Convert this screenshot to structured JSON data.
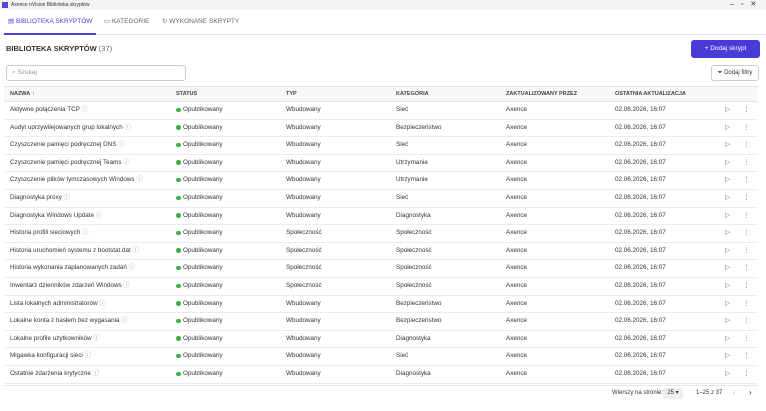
{
  "window": {
    "title": "Axence nVision Biblioteka skryptów"
  },
  "tabs": [
    "BIBLIOTEKA SKRYPTÓW",
    "KATEGORIE",
    "WYKONANE SKRYPTY"
  ],
  "header": {
    "title": "BIBLIOTEKA SKRYPTÓW",
    "count": "(37)",
    "add_button": "Dodaj skrypt"
  },
  "search": {
    "placeholder": "Szukaj"
  },
  "filters": {
    "button": "Dodaj filtry"
  },
  "table": {
    "columns": [
      "NAZWA",
      "STATUS",
      "TYP",
      "KATEGORIA",
      "ZAKTUALIZOWANY PRZEZ",
      "OSTATNIA AKTUALIZACJA"
    ],
    "rows": [
      [
        "Aktywne połączenia TCP",
        "Opublikowany",
        "Wbudowany",
        "Sieć",
        "Axence",
        "02.06.2026, 16:07"
      ],
      [
        "Audyt uprzywilejowanych grup lokalnych",
        "Opublikowany",
        "Wbudowany",
        "Bezpieczeństwo",
        "Axence",
        "02.06.2026, 16:07"
      ],
      [
        "Czyszczenie pamięci podręcznej DNS",
        "Opublikowany",
        "Wbudowany",
        "Sieć",
        "Axence",
        "02.06.2026, 16:07"
      ],
      [
        "Czyszczenie pamięci podręcznej Teams",
        "Opublikowany",
        "Wbudowany",
        "Utrzymanie",
        "Axence",
        "02.06.2026, 16:07"
      ],
      [
        "Czyszczenie plików tymczasowych Windows",
        "Opublikowany",
        "Wbudowany",
        "Utrzymanie",
        "Axence",
        "02.06.2026, 16:07"
      ],
      [
        "Diagnostyka proxy",
        "Opublikowany",
        "Wbudowany",
        "Sieć",
        "Axence",
        "02.06.2026, 16:07"
      ],
      [
        "Diagnostyka Windows Update",
        "Opublikowany",
        "Wbudowany",
        "Diagnostyka",
        "Axence",
        "02.06.2026, 16:07"
      ],
      [
        "Historia profili sieciowych",
        "Opublikowany",
        "Społeczność",
        "Społeczność",
        "Axence",
        "02.06.2026, 16:07"
      ],
      [
        "Historia uruchomień systemu z bootstat.dat",
        "Opublikowany",
        "Społeczność",
        "Społeczność",
        "Axence",
        "02.06.2026, 16:07"
      ],
      [
        "Historia wykonania zaplanowanych zadań",
        "Opublikowany",
        "Społeczność",
        "Społeczność",
        "Axence",
        "02.06.2026, 16:07"
      ],
      [
        "Inwentarz dzienników zdarzeń Windows",
        "Opublikowany",
        "Społeczność",
        "Społeczność",
        "Axence",
        "02.06.2026, 16:07"
      ],
      [
        "Lista lokalnych administratorów",
        "Opublikowany",
        "Wbudowany",
        "Bezpieczeństwo",
        "Axence",
        "02.06.2026, 16:07"
      ],
      [
        "Lokalne konta z hasłem bez wygasania",
        "Opublikowany",
        "Wbudowany",
        "Bezpieczeństwo",
        "Axence",
        "02.06.2026, 16:07"
      ],
      [
        "Lokalne profile użytkowników",
        "Opublikowany",
        "Wbudowany",
        "Diagnostyka",
        "Axence",
        "02.06.2026, 16:07"
      ],
      [
        "Migawka konfiguracji sieci",
        "Opublikowany",
        "Wbudowany",
        "Sieć",
        "Axence",
        "02.06.2026, 16:07"
      ],
      [
        "Ostatnie zdarzenia krytyczne",
        "Opublikowany",
        "Wbudowany",
        "Diagnostyka",
        "Axence",
        "02.06.2026, 16:07"
      ]
    ]
  },
  "pagination": {
    "rows_per_page_label": "Wierszy na stronie:",
    "rows_per_page": 25,
    "range": "1–25 z 37"
  }
}
